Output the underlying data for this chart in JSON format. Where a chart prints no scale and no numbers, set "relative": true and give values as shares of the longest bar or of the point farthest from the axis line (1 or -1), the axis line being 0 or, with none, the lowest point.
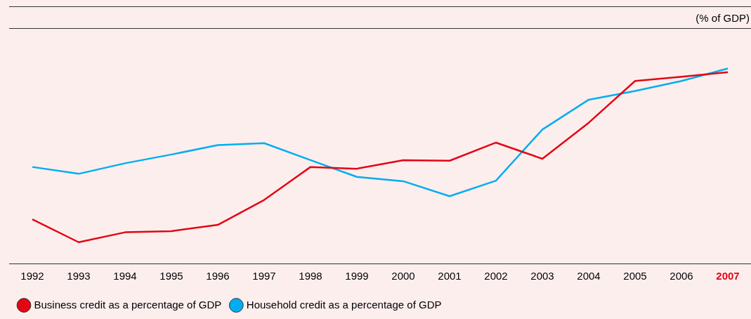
{
  "chart_data": {
    "type": "line",
    "ylabel": "(% of GDP)",
    "relative": true,
    "grid": false,
    "legend": "bottom left",
    "marker": "none",
    "line_style": "solid",
    "categories": [
      "1992",
      "1993",
      "1994",
      "1995",
      "1996",
      "1997",
      "1998",
      "1999",
      "2000",
      "2001",
      "2002",
      "2003",
      "2004",
      "2005",
      "2006",
      "2007"
    ],
    "series": [
      {
        "name": "Business credit as a percentage of GDP",
        "color": "#e30613",
        "values": [
          0.227,
          0.109,
          0.16,
          0.166,
          0.198,
          0.326,
          0.495,
          0.486,
          0.53,
          0.527,
          0.62,
          0.537,
          0.722,
          0.936,
          0.958,
          0.981
        ]
      },
      {
        "name": "Household credit as a percentage of GDP",
        "color": "#00aeef",
        "values": [
          0.495,
          0.46,
          0.514,
          0.559,
          0.607,
          0.617,
          0.53,
          0.444,
          0.422,
          0.345,
          0.425,
          0.687,
          0.84,
          0.885,
          0.936,
          1
        ]
      }
    ]
  }
}
